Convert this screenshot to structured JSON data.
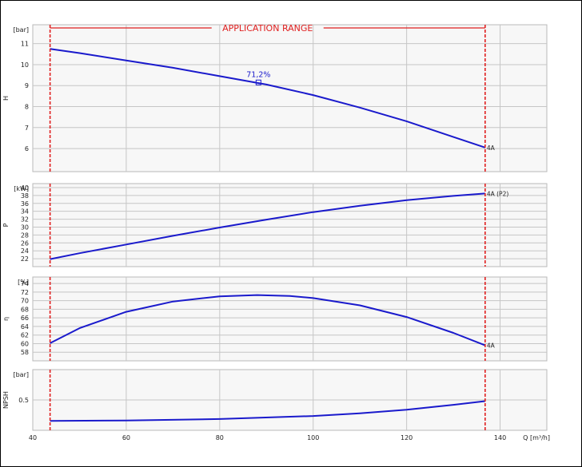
{
  "chart_data": {
    "type": "line",
    "x_axis": {
      "label": "Q [m³/h]",
      "range": [
        40,
        150
      ],
      "ticks": [
        40,
        60,
        80,
        100,
        120,
        140
      ],
      "tick_labels": [
        "40",
        "60",
        "80",
        "100",
        "120",
        "140"
      ]
    },
    "application_range": {
      "label": "APPLICATION RANGE",
      "x_min": 43.7,
      "x_max": 136.8
    },
    "panels": [
      {
        "id": "head",
        "ylabel": "H",
        "unit": "[bar]",
        "ylim": [
          4.9,
          11.9
        ],
        "yticks": [
          6,
          7,
          8,
          9,
          10,
          11
        ],
        "ytick_labels": [
          "6",
          "7",
          "8",
          "9",
          "10",
          "11"
        ],
        "curve": {
          "x": [
            43.7,
            50,
            60,
            70,
            80,
            90,
            100,
            110,
            120,
            130,
            136.8
          ],
          "y": [
            10.75,
            10.55,
            10.2,
            9.85,
            9.45,
            9.05,
            8.55,
            7.95,
            7.3,
            6.55,
            6.05
          ]
        },
        "end_label": "4A",
        "marker": {
          "x": 88.3,
          "y": 9.15,
          "label": "71,2%"
        }
      },
      {
        "id": "power",
        "ylabel": "P",
        "unit": "[kW]",
        "ylim": [
          20,
          41
        ],
        "yticks": [
          22,
          24,
          26,
          28,
          30,
          32,
          34,
          36,
          38,
          40
        ],
        "ytick_labels": [
          "22",
          "24",
          "26",
          "28",
          "30",
          "32",
          "34",
          "36",
          "38",
          "40"
        ],
        "curve": {
          "x": [
            43.7,
            50,
            60,
            70,
            80,
            90,
            100,
            110,
            120,
            130,
            136.8
          ],
          "y": [
            21.9,
            23.4,
            25.6,
            27.8,
            29.9,
            31.9,
            33.8,
            35.4,
            36.8,
            37.9,
            38.5
          ]
        },
        "end_label": "4A (P2)"
      },
      {
        "id": "efficiency",
        "ylabel": "η",
        "unit": "[%]",
        "ylim": [
          56,
          75.5
        ],
        "yticks": [
          58,
          60,
          62,
          64,
          66,
          68,
          70,
          72,
          74
        ],
        "ytick_labels": [
          "58",
          "60",
          "62",
          "64",
          "66",
          "68",
          "70",
          "72",
          "74"
        ],
        "curve": {
          "x": [
            43.7,
            50,
            60,
            70,
            80,
            88,
            95,
            100,
            110,
            120,
            130,
            136.8
          ],
          "y": [
            60.1,
            63.6,
            67.4,
            69.8,
            71.0,
            71.3,
            71.1,
            70.6,
            68.9,
            66.2,
            62.5,
            59.6
          ]
        },
        "end_label": "4A"
      },
      {
        "id": "npsh",
        "ylabel": "NPSH",
        "unit": "[bar]",
        "ylim": [
          0,
          1.0
        ],
        "yticks": [
          0.5
        ],
        "ytick_labels": [
          "0.5"
        ],
        "curve": {
          "x": [
            43.7,
            60,
            80,
            100,
            110,
            120,
            130,
            136.8
          ],
          "y": [
            0.155,
            0.16,
            0.185,
            0.235,
            0.28,
            0.34,
            0.42,
            0.48
          ]
        }
      }
    ],
    "colors": {
      "curve": "#1a1acc",
      "range_line": "#e02020",
      "plot_bg": "#f7f7f7",
      "grid": "#c6c6c6",
      "text": "#222222"
    }
  }
}
